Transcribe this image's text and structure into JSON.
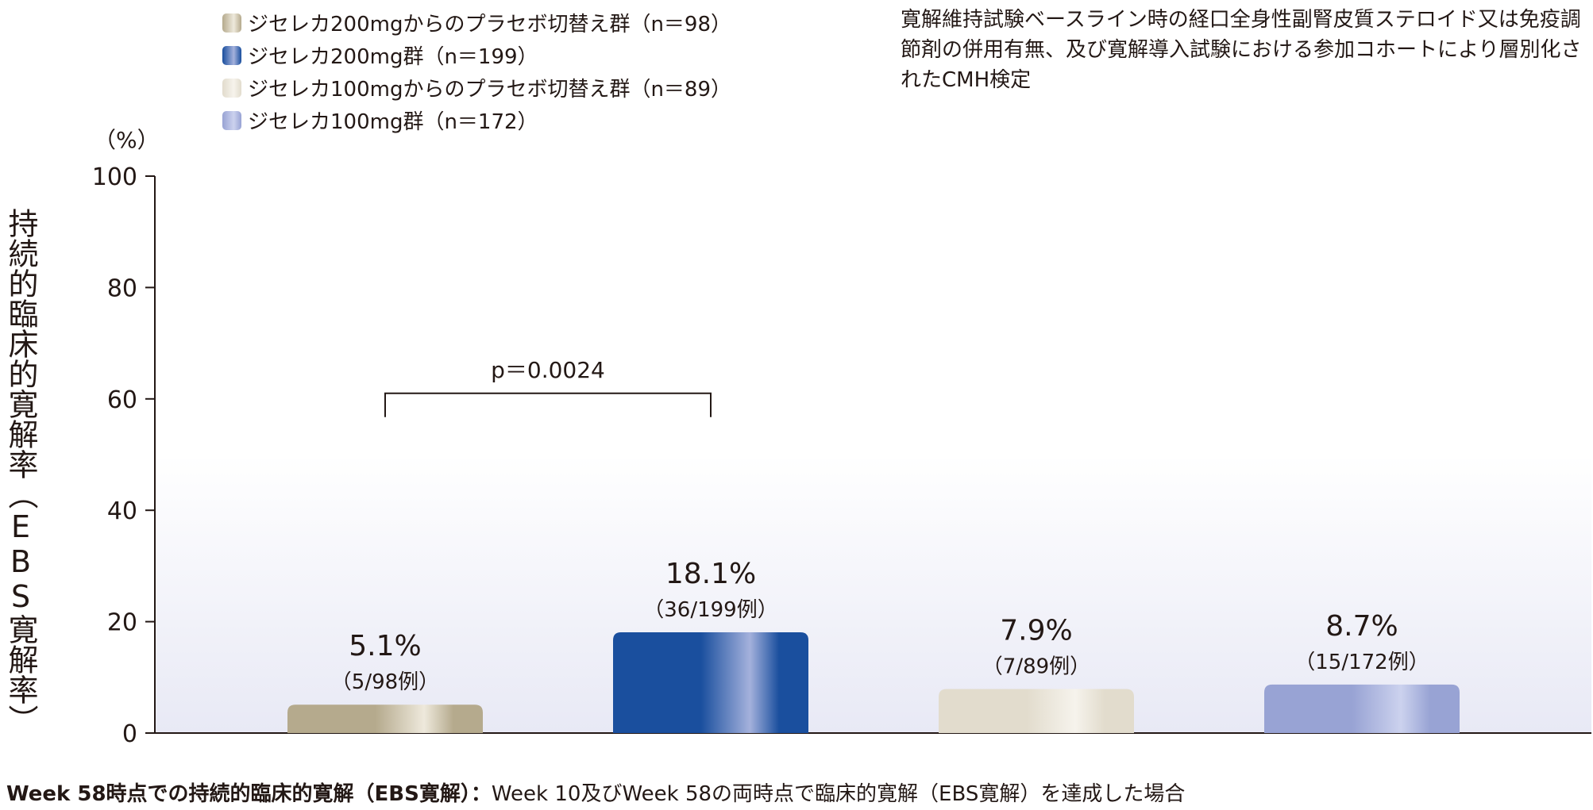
{
  "legend": [
    {
      "label": "ジセレカ200mgからのプラセボ切替え群（n＝98）",
      "color": "#b5aa8d"
    },
    {
      "label": "ジセレカ200mg群（n＝199）",
      "color": "#1a4f9e"
    },
    {
      "label": "ジセレカ100mgからのプラセボ切替え群（n＝89）",
      "color": "#e2dccd"
    },
    {
      "label": "ジセレカ100mg群（n＝172）",
      "color": "#98a3d4"
    }
  ],
  "method_note": "寛解維持試験ベースライン時の経口全身性副腎皮質ステロイド又は免疫調節剤の併用有無、及び寛解導入試験における参加コホートにより層別化されたCMH検定",
  "y_title": "持続的臨床的寛解率（EBS寛解率）",
  "unit": "（%）",
  "footnote": {
    "bold": "Week 58時点での持続的臨床的寛解（EBS寛解）：",
    "text": "Week 10及びWeek 58の両時点で臨床的寛解（EBS寛解）を達成した場合"
  },
  "chart_data": {
    "type": "bar",
    "title": "",
    "xlabel": "",
    "ylabel": "持続的臨床的寛解率（EBS寛解率）",
    "ylim": [
      0,
      100
    ],
    "yticks": [
      0,
      20,
      40,
      60,
      80,
      100
    ],
    "grid": false,
    "legend_position": "top-left",
    "categories": [
      "ジセレカ200mgからのプラセボ切替え群（n＝98）",
      "ジセレカ200mg群（n＝199）",
      "ジセレカ100mgからのプラセボ切替え群（n＝89）",
      "ジセレカ100mg群（n＝172）"
    ],
    "values": [
      5.1,
      18.1,
      7.9,
      8.7
    ],
    "value_labels": [
      "5.1%",
      "18.1%",
      "7.9%",
      "8.7%"
    ],
    "count_labels": [
      "（5/98例）",
      "（36/199例）",
      "（7/89例）",
      "（15/172例）"
    ],
    "bar_colors": [
      [
        "#b5aa8d",
        "#eee9dc"
      ],
      [
        "#1a4f9e",
        "#a4b1dc"
      ],
      [
        "#e2dccd",
        "#f6f3ec"
      ],
      [
        "#98a3d4",
        "#ccd2ee"
      ]
    ],
    "annotations": [
      {
        "text": "p＝0.0024",
        "from": 0,
        "to": 1,
        "y": 61
      }
    ]
  }
}
